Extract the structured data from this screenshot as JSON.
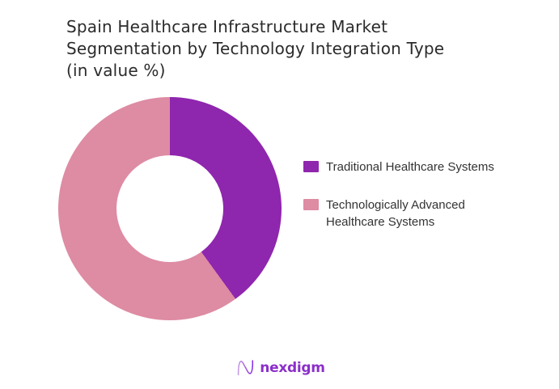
{
  "title": {
    "lines": [
      "Spain Healthcare Infrastructure Market",
      "Segmentation by Technology Integration Type",
      "(in value %)"
    ]
  },
  "chart_data": {
    "type": "pie",
    "subtype": "donut",
    "title": "Spain Healthcare Infrastructure Market Segmentation by Technology Integration Type (in value %)",
    "unit": "value %",
    "categories": [
      "Traditional Healthcare Systems",
      "Technologically Advanced Healthcare Systems"
    ],
    "values": [
      40,
      60
    ],
    "colors": [
      "#8F26AE",
      "#DE8BA4"
    ],
    "start_angle_deg": 0,
    "direction": "clockwise",
    "inner_radius_ratio": 0.48,
    "legend_position": "right",
    "data_labels": false
  },
  "legend": {
    "items": [
      {
        "label": "Traditional Healthcare Systems",
        "lines": [
          "Traditional Healthcare Systems"
        ],
        "color": "#8F26AE"
      },
      {
        "label": "Technologically Advanced Healthcare Systems",
        "lines": [
          "Technologically Advanced",
          "Healthcare Systems"
        ],
        "color": "#DE8BA4"
      }
    ]
  },
  "footer": {
    "brand_name": "nexdigm",
    "brand_icon": "nexdigm-n-wave-icon",
    "brand_color": "#8B2FC9"
  }
}
